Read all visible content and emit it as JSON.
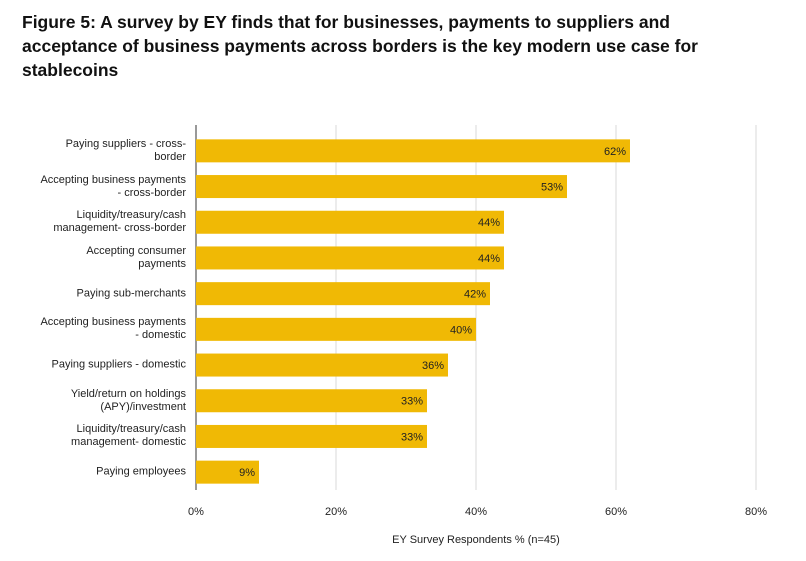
{
  "chart_data": {
    "type": "hbar",
    "title": "Figure 5: A survey by EY finds that for businesses, payments to suppliers and acceptance of business payments across borders is the key modern use case for stablecoins",
    "x_label": "EY Survey Respondents % (n=45)",
    "categories": [
      "Paying suppliers - cross-border",
      "Accepting business payments - cross-border",
      "Liquidity/treasury/cash management- cross-border",
      "Accepting consumer payments",
      "Paying sub-merchants",
      "Accepting business payments - domestic",
      "Paying suppliers - domestic",
      "Yield/return on holdings (APY)/investment",
      "Liquidity/treasury/cash management- domestic",
      "Paying employees"
    ],
    "values": [
      62,
      53,
      44,
      44,
      42,
      40,
      36,
      33,
      33,
      9
    ],
    "value_labels": [
      "62%",
      "53%",
      "44%",
      "44%",
      "42%",
      "40%",
      "36%",
      "33%",
      "33%",
      "9%"
    ],
    "color": "#f0b905",
    "xlim": [
      0,
      80
    ],
    "xticks": [
      {
        "value": 0,
        "label": "0%"
      },
      {
        "value": 20,
        "label": "20%"
      },
      {
        "value": 40,
        "label": "40%"
      },
      {
        "value": 60,
        "label": "60%"
      },
      {
        "value": 80,
        "label": "80%"
      }
    ],
    "grid": true
  }
}
